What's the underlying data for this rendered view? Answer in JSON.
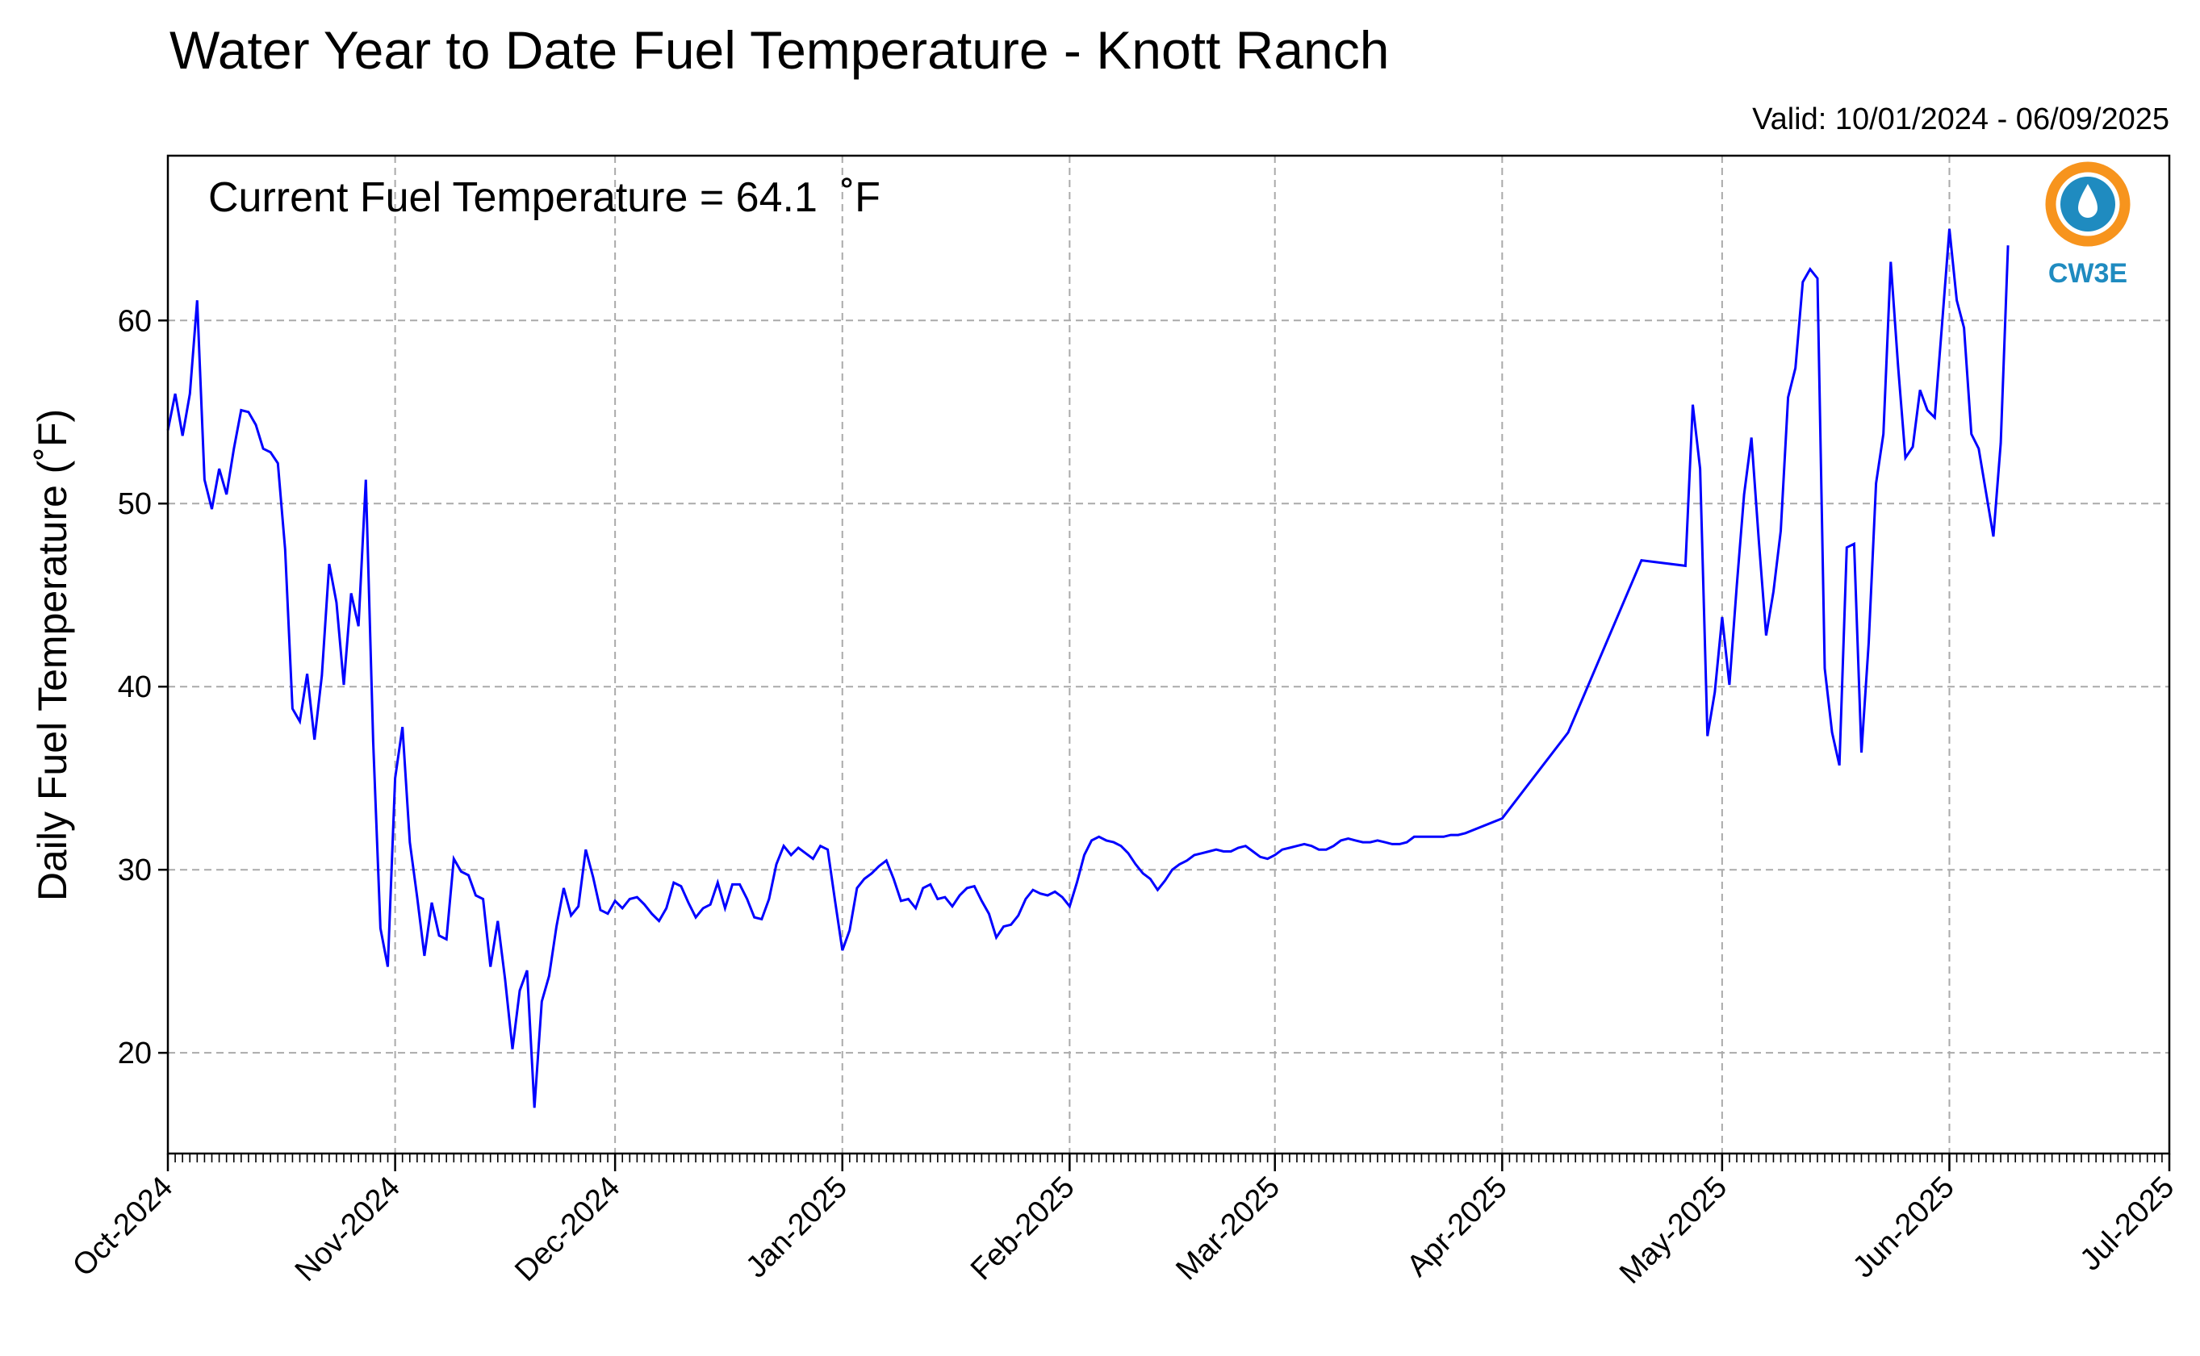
{
  "chart_data": {
    "type": "line",
    "title": "Water Year to Date Fuel Temperature - Knott Ranch",
    "subtitle": "Valid: 10/01/2024 - 06/09/2025",
    "annotation": "Current Fuel Temperature = 64.1  ˚F",
    "ylabel": "Daily Fuel Temperature (˚F)",
    "xlabel": "",
    "xlim": [
      "2024-10-01",
      "2025-07-01"
    ],
    "ylim": [
      14.5,
      69
    ],
    "yticks": [
      20,
      30,
      40,
      50,
      60
    ],
    "xticks": [
      {
        "date": "2024-10-01",
        "label": "Oct-2024"
      },
      {
        "date": "2024-11-01",
        "label": "Nov-2024"
      },
      {
        "date": "2024-12-01",
        "label": "Dec-2024"
      },
      {
        "date": "2025-01-01",
        "label": "Jan-2025"
      },
      {
        "date": "2025-02-01",
        "label": "Feb-2025"
      },
      {
        "date": "2025-03-01",
        "label": "Mar-2025"
      },
      {
        "date": "2025-04-01",
        "label": "Apr-2025"
      },
      {
        "date": "2025-05-01",
        "label": "May-2025"
      },
      {
        "date": "2025-06-01",
        "label": "Jun-2025"
      },
      {
        "date": "2025-07-01",
        "label": "Jul-2025"
      }
    ],
    "grid": true,
    "series_color": "#0000ff",
    "series": [
      {
        "x": [
          "2024-10-01",
          "2024-10-02",
          "2024-10-03",
          "2024-10-04",
          "2024-10-05",
          "2024-10-06",
          "2024-10-07",
          "2024-10-08",
          "2024-10-09",
          "2024-10-10",
          "2024-10-11",
          "2024-10-12",
          "2024-10-13",
          "2024-10-14",
          "2024-10-15",
          "2024-10-16",
          "2024-10-17",
          "2024-10-18",
          "2024-10-19",
          "2024-10-20",
          "2024-10-21",
          "2024-10-22",
          "2024-10-23",
          "2024-10-24",
          "2024-10-25",
          "2024-10-26",
          "2024-10-27",
          "2024-10-28",
          "2024-10-29",
          "2024-10-30",
          "2024-10-31",
          "2024-11-01",
          "2024-11-02",
          "2024-11-03",
          "2024-11-04",
          "2024-11-05",
          "2024-11-06",
          "2024-11-07",
          "2024-11-08",
          "2024-11-09",
          "2024-11-10",
          "2024-11-11",
          "2024-11-12",
          "2024-11-13",
          "2024-11-14",
          "2024-11-15",
          "2024-11-16",
          "2024-11-17",
          "2024-11-18",
          "2024-11-19",
          "2024-11-20",
          "2024-11-21",
          "2024-11-22",
          "2024-11-23",
          "2024-11-24",
          "2024-11-25",
          "2024-11-26",
          "2024-11-27",
          "2024-11-28",
          "2024-11-29",
          "2024-11-30",
          "2024-12-01",
          "2024-12-02",
          "2024-12-03",
          "2024-12-04",
          "2024-12-05",
          "2024-12-06",
          "2024-12-07",
          "2024-12-08",
          "2024-12-09",
          "2024-12-10",
          "2024-12-11",
          "2024-12-12",
          "2024-12-13",
          "2024-12-14",
          "2024-12-15",
          "2024-12-16",
          "2024-12-17",
          "2024-12-18",
          "2024-12-19",
          "2024-12-20",
          "2024-12-21",
          "2024-12-22",
          "2024-12-23",
          "2024-12-24",
          "2024-12-25",
          "2024-12-26",
          "2024-12-27",
          "2024-12-28",
          "2024-12-29",
          "2024-12-30",
          "2024-12-31",
          "2025-01-01",
          "2025-01-02",
          "2025-01-03",
          "2025-01-04",
          "2025-01-05",
          "2025-01-06",
          "2025-01-07",
          "2025-01-08",
          "2025-01-09",
          "2025-01-10",
          "2025-01-11",
          "2025-01-12",
          "2025-01-13",
          "2025-01-14",
          "2025-01-15",
          "2025-01-16",
          "2025-01-17",
          "2025-01-18",
          "2025-01-19",
          "2025-01-20",
          "2025-01-21",
          "2025-01-22",
          "2025-01-23",
          "2025-01-24",
          "2025-01-25",
          "2025-01-26",
          "2025-01-27",
          "2025-01-28",
          "2025-01-29",
          "2025-01-30",
          "2025-01-31",
          "2025-02-01",
          "2025-02-02",
          "2025-02-03",
          "2025-02-04",
          "2025-02-05",
          "2025-02-06",
          "2025-02-07",
          "2025-02-08",
          "2025-02-09",
          "2025-02-10",
          "2025-02-11",
          "2025-02-12",
          "2025-02-13",
          "2025-02-14",
          "2025-02-15",
          "2025-02-16",
          "2025-02-17",
          "2025-02-18",
          "2025-02-19",
          "2025-02-20",
          "2025-02-21",
          "2025-02-22",
          "2025-02-23",
          "2025-02-24",
          "2025-02-25",
          "2025-02-26",
          "2025-02-27",
          "2025-02-28",
          "2025-03-01",
          "2025-03-02",
          "2025-03-03",
          "2025-03-04",
          "2025-03-05",
          "2025-03-06",
          "2025-03-07",
          "2025-03-08",
          "2025-03-09",
          "2025-03-10",
          "2025-03-11",
          "2025-03-12",
          "2025-03-13",
          "2025-03-14",
          "2025-03-15",
          "2025-03-16",
          "2025-03-17",
          "2025-03-18",
          "2025-03-19",
          "2025-03-20",
          "2025-03-21",
          "2025-03-22",
          "2025-03-23",
          "2025-03-24",
          "2025-03-25",
          "2025-03-26",
          "2025-03-27",
          "2025-04-01",
          "2025-04-10",
          "2025-04-20",
          "2025-04-26",
          "2025-04-27",
          "2025-04-28",
          "2025-04-29",
          "2025-04-30",
          "2025-05-01",
          "2025-05-02",
          "2025-05-03",
          "2025-05-04",
          "2025-05-05",
          "2025-05-06",
          "2025-05-07",
          "2025-05-08",
          "2025-05-09",
          "2025-05-10",
          "2025-05-11",
          "2025-05-12",
          "2025-05-13",
          "2025-05-14",
          "2025-05-15",
          "2025-05-16",
          "2025-05-17",
          "2025-05-18",
          "2025-05-19",
          "2025-05-20",
          "2025-05-21",
          "2025-05-22",
          "2025-05-23",
          "2025-05-24",
          "2025-05-25",
          "2025-05-26",
          "2025-05-27",
          "2025-05-28",
          "2025-05-29",
          "2025-05-30",
          "2025-05-31",
          "2025-06-01",
          "2025-06-02",
          "2025-06-03",
          "2025-06-04",
          "2025-06-05",
          "2025-06-06",
          "2025-06-07",
          "2025-06-08",
          "2025-06-09"
        ],
        "y": [
          54.0,
          56.0,
          53.7,
          56.0,
          61.1,
          51.3,
          49.7,
          51.9,
          50.5,
          53.0,
          55.1,
          55.0,
          54.3,
          53.0,
          52.8,
          52.2,
          47.5,
          38.8,
          38.1,
          40.7,
          37.1,
          40.6,
          46.7,
          44.6,
          40.1,
          45.1,
          43.3,
          51.3,
          37.0,
          26.8,
          24.7,
          35.0,
          37.8,
          31.5,
          28.5,
          25.3,
          28.2,
          26.4,
          26.2,
          30.6,
          29.9,
          29.7,
          28.6,
          28.4,
          24.7,
          27.2,
          24.0,
          20.2,
          23.4,
          24.5,
          17.0,
          22.8,
          24.2,
          26.9,
          29.0,
          27.5,
          28.0,
          31.1,
          29.6,
          27.8,
          27.6,
          28.3,
          27.9,
          28.4,
          28.5,
          28.1,
          27.6,
          27.2,
          27.9,
          29.3,
          29.1,
          28.2,
          27.4,
          27.9,
          28.1,
          29.3,
          27.9,
          29.2,
          29.2,
          28.4,
          27.4,
          27.3,
          28.4,
          30.3,
          31.3,
          30.8,
          31.2,
          30.9,
          30.6,
          31.3,
          31.1,
          28.3,
          25.6,
          26.7,
          29.0,
          29.5,
          29.8,
          30.2,
          30.5,
          29.5,
          28.3,
          28.4,
          27.9,
          29.0,
          29.2,
          28.4,
          28.5,
          28.0,
          28.6,
          29.0,
          29.1,
          28.3,
          27.6,
          26.3,
          26.9,
          27.0,
          27.5,
          28.4,
          28.9,
          28.7,
          28.6,
          28.8,
          28.5,
          28.0,
          29.3,
          30.8,
          31.6,
          31.8,
          31.6,
          31.5,
          31.3,
          30.9,
          30.3,
          29.8,
          29.5,
          28.9,
          29.4,
          30.0,
          30.3,
          30.5,
          30.8,
          30.9,
          31.0,
          31.1,
          31.0,
          31.0,
          31.2,
          31.3,
          31.0,
          30.7,
          30.6,
          30.8,
          31.1,
          31.2,
          31.3,
          31.4,
          31.3,
          31.1,
          31.1,
          31.3,
          31.6,
          31.7,
          31.6,
          31.5,
          31.5,
          31.6,
          31.5,
          31.4,
          31.4,
          31.5,
          31.8,
          31.8,
          31.8,
          31.8,
          31.8,
          31.9,
          31.9,
          32.0,
          32.8,
          37.5,
          46.9,
          46.6,
          55.4,
          51.9,
          37.3,
          39.7,
          43.8,
          40.1,
          45.5,
          50.5,
          53.6,
          48.0,
          42.8,
          45.2,
          48.5,
          55.8,
          57.4,
          62.1,
          62.8,
          62.3,
          41.0,
          37.5,
          35.7,
          47.6,
          47.8,
          36.4,
          42.4,
          51.1,
          53.8,
          63.2,
          57.5,
          52.5,
          53.1,
          56.2,
          55.1,
          54.7,
          59.8,
          65.0,
          61.1,
          59.6,
          53.8,
          53.0,
          50.6,
          48.2,
          53.3,
          64.1
        ]
      }
    ]
  },
  "logo": {
    "text": "CW3E",
    "colors": {
      "orange": "#f7941d",
      "blue": "#1f8bc0"
    }
  }
}
